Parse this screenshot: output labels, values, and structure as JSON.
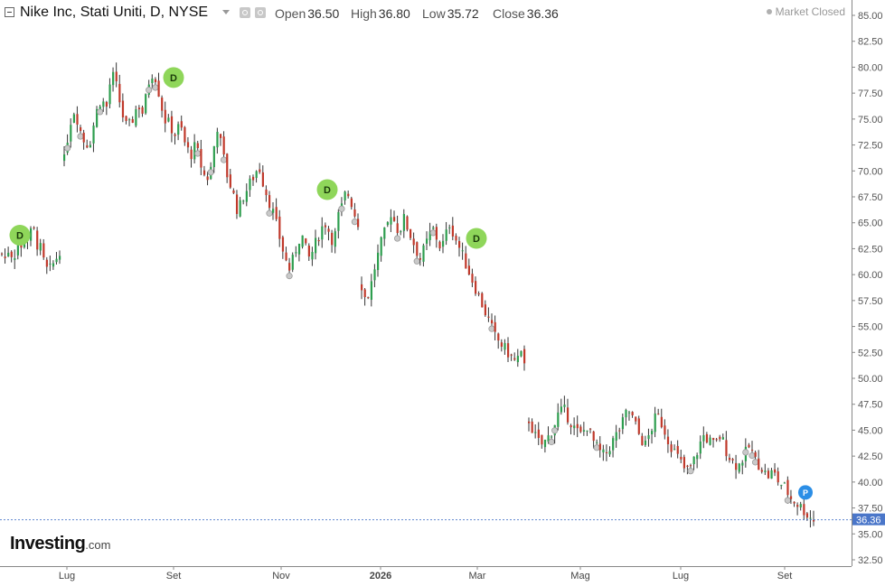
{
  "header": {
    "title": "Nike Inc, Stati Uniti, D, NYSE",
    "open_label": "Open",
    "open_value": "36.50",
    "high_label": "High",
    "high_value": "36.80",
    "low_label": "Low",
    "low_value": "35.72",
    "close_label": "Close",
    "close_value": "36.36",
    "market_status": "Market Closed",
    "settings_icon": "gear-icon",
    "alert_icon": "alert-icon"
  },
  "logo": {
    "main": "Investing",
    "suffix": ".com"
  },
  "colors": {
    "up": "#2e9e4f",
    "down": "#c0392b",
    "event": "#8fd65a",
    "p_marker": "#2b8ee6",
    "last_price": "#4a76c9",
    "axis": "#666666"
  },
  "chart_data": {
    "type": "candlestick",
    "title": "Nike Inc, Stati Uniti, D, NYSE",
    "last_price": 36.36,
    "ylim": [
      32.5,
      85
    ],
    "yticks": [
      "32.50",
      "35.00",
      "37.50",
      "40.00",
      "42.50",
      "45.00",
      "47.50",
      "50.00",
      "52.50",
      "55.00",
      "57.50",
      "60.00",
      "62.50",
      "65.00",
      "67.50",
      "70.00",
      "72.50",
      "75.00",
      "77.50",
      "80.00",
      "82.50",
      "85.00"
    ],
    "xticks": [
      "Lug",
      "Set",
      "Nov",
      "2026",
      "Mar",
      "Mag",
      "Lug",
      "Set"
    ],
    "bold_xticks": [
      "2026"
    ],
    "segments": [
      {
        "name": "segment-1",
        "x_range": [
          0,
          68
        ],
        "close": [
          62.0,
          61.5,
          62.8,
          61.2,
          63.5,
          62.4,
          64.0,
          63.2,
          64.8,
          63.0,
          62.5,
          61.0,
          60.2,
          60.8,
          61.5,
          62.4
        ]
      },
      {
        "name": "segment-2",
        "x_range": [
          69,
          300
        ],
        "close": [
          71.0,
          74.5,
          76.0,
          74.0,
          72.5,
          73.0,
          75.5,
          77.0,
          76.0,
          79.5,
          78.0,
          75.5,
          74.0,
          75.0,
          76.5,
          75.5,
          78.5,
          79.8,
          77.5,
          75.0,
          74.5,
          73.5,
          74.5,
          72.5,
          71.5,
          72.5,
          70.5,
          69.0,
          70.5,
          74.5,
          72.0,
          69.5,
          68.0,
          66.0,
          67.5,
          68.5,
          69.5,
          70.5,
          68.5,
          67.0
        ]
      },
      {
        "name": "segment-3",
        "x_range": [
          300,
          398
        ],
        "close": [
          66.0,
          64.5,
          63.0,
          61.5,
          60.5,
          61.5,
          63.0,
          64.0,
          62.5,
          61.5,
          62.5,
          63.5,
          64.5,
          65.0,
          64.0,
          63.0,
          65.5,
          66.5,
          68.0,
          67.5,
          66.0,
          65.0
        ]
      },
      {
        "name": "segment-4",
        "x_range": [
          398,
          582
        ],
        "close": [
          59.0,
          57.5,
          58.5,
          60.5,
          62.0,
          63.5,
          64.5,
          66.0,
          65.0,
          64.0,
          65.5,
          64.5,
          63.5,
          62.5,
          61.5,
          62.5,
          63.5,
          64.5,
          63.5,
          62.5,
          63.5,
          65.0,
          64.0,
          63.0,
          62.0,
          61.0,
          60.0,
          59.0,
          58.0,
          57.0,
          56.0,
          55.0,
          54.0,
          53.5,
          53.0,
          52.5,
          52.0,
          51.5,
          52.5,
          51.0
        ]
      },
      {
        "name": "segment-5",
        "x_range": [
          583,
          902
        ],
        "close": [
          46.0,
          44.5,
          43.5,
          44.0,
          45.0,
          46.5,
          47.0,
          46.0,
          45.0,
          44.5,
          45.5,
          44.0,
          43.0,
          42.5,
          43.5,
          44.5,
          45.5,
          47.0,
          46.0,
          44.5,
          43.5,
          45.0,
          46.5,
          45.5,
          44.0,
          43.0,
          42.0,
          41.0,
          41.5,
          43.0,
          44.5,
          44.0,
          43.5,
          44.5,
          43.0,
          42.0,
          41.5,
          42.5,
          43.5,
          42.0,
          41.5,
          40.5,
          41.0,
          40.0,
          39.5,
          38.5,
          38.0,
          37.5,
          36.8,
          36.36
        ]
      }
    ],
    "events": [
      {
        "label": "D",
        "x": 22,
        "price": 63.8
      },
      {
        "label": "D",
        "x": 192,
        "price": 79.0
      },
      {
        "label": "D",
        "x": 362,
        "price": 68.2
      },
      {
        "label": "D",
        "x": 527,
        "price": 63.5
      },
      {
        "label": "P",
        "x": 891,
        "price": 39.0
      }
    ]
  }
}
